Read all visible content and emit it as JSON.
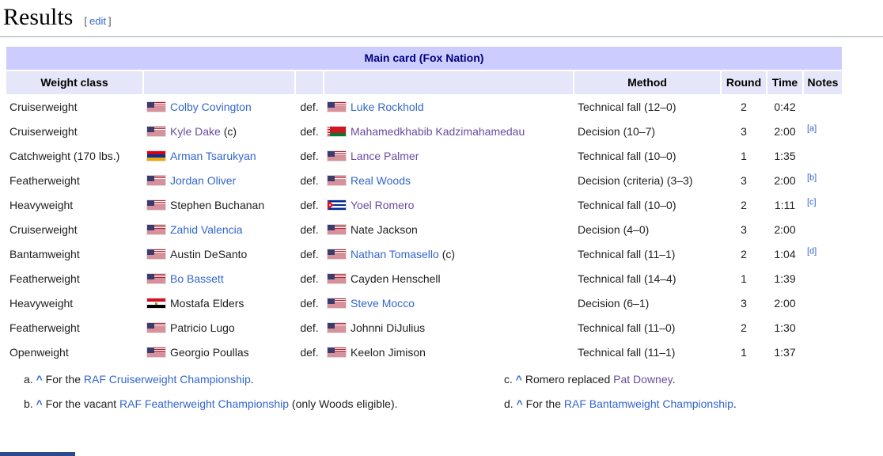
{
  "page": {
    "title": "Results",
    "edit_label": "edit",
    "edit_brackets": [
      "[",
      "]"
    ]
  },
  "table": {
    "caption": "Main card (Fox Nation)",
    "def_label": "def.",
    "columns": [
      "Weight class",
      "",
      "",
      "",
      "Method",
      "Round",
      "Time",
      "Notes"
    ],
    "rows": [
      {
        "weight_class": "Cruiserweight",
        "f1_flag": "us",
        "f1_name": "Colby Covington",
        "f1_suffix": "",
        "f1_style": "link",
        "f2_flag": "us",
        "f2_name": "Luke Rockhold",
        "f2_suffix": "",
        "f2_style": "link",
        "method": "Technical fall (12–0)",
        "round": "2",
        "time": "0:42",
        "note": ""
      },
      {
        "weight_class": "Cruiserweight",
        "f1_flag": "us",
        "f1_name": "Kyle Dake",
        "f1_suffix": " (c)",
        "f1_style": "visited",
        "f2_flag": "by",
        "f2_name": "Mahamedkhabib Kadzimahamedau",
        "f2_suffix": "",
        "f2_style": "visited",
        "method": "Decision (10–7)",
        "round": "3",
        "time": "2:00",
        "note": "a"
      },
      {
        "weight_class": "Catchweight (170 lbs.)",
        "f1_flag": "am",
        "f1_name": "Arman Tsarukyan",
        "f1_suffix": "",
        "f1_style": "link",
        "f2_flag": "us",
        "f2_name": "Lance Palmer",
        "f2_suffix": "",
        "f2_style": "visited",
        "method": "Technical fall (10–0)",
        "round": "1",
        "time": "1:35",
        "note": ""
      },
      {
        "weight_class": "Featherweight",
        "f1_flag": "us",
        "f1_name": "Jordan Oliver",
        "f1_suffix": "",
        "f1_style": "link",
        "f2_flag": "us",
        "f2_name": "Real Woods",
        "f2_suffix": "",
        "f2_style": "link",
        "method": "Decision (criteria) (3–3)",
        "round": "3",
        "time": "2:00",
        "note": "b"
      },
      {
        "weight_class": "Heavyweight",
        "f1_flag": "us",
        "f1_name": "Stephen Buchanan",
        "f1_suffix": "",
        "f1_style": "plain",
        "f2_flag": "cu",
        "f2_name": "Yoel Romero",
        "f2_suffix": "",
        "f2_style": "visited",
        "method": "Technical fall (10–0)",
        "round": "2",
        "time": "1:11",
        "note": "c"
      },
      {
        "weight_class": "Cruiserweight",
        "f1_flag": "us",
        "f1_name": "Zahid Valencia",
        "f1_suffix": "",
        "f1_style": "link",
        "f2_flag": "us",
        "f2_name": "Nate Jackson",
        "f2_suffix": "",
        "f2_style": "plain",
        "method": "Decision (4–0)",
        "round": "3",
        "time": "2:00",
        "note": ""
      },
      {
        "weight_class": "Bantamweight",
        "f1_flag": "us",
        "f1_name": "Austin DeSanto",
        "f1_suffix": "",
        "f1_style": "plain",
        "f2_flag": "us",
        "f2_name": "Nathan Tomasello",
        "f2_suffix": " (c)",
        "f2_style": "link",
        "method": "Technical fall (11–1)",
        "round": "2",
        "time": "1:04",
        "note": "d"
      },
      {
        "weight_class": "Featherweight",
        "f1_flag": "us",
        "f1_name": "Bo Bassett",
        "f1_suffix": "",
        "f1_style": "link",
        "f2_flag": "us",
        "f2_name": "Cayden Henschell",
        "f2_suffix": "",
        "f2_style": "plain",
        "method": "Technical fall (14–4)",
        "round": "1",
        "time": "1:39",
        "note": ""
      },
      {
        "weight_class": "Heavyweight",
        "f1_flag": "eg",
        "f1_name": "Mostafa Elders",
        "f1_suffix": "",
        "f1_style": "plain",
        "f2_flag": "us",
        "f2_name": "Steve Mocco",
        "f2_suffix": "",
        "f2_style": "link",
        "method": "Decision (6–1)",
        "round": "3",
        "time": "2:00",
        "note": ""
      },
      {
        "weight_class": "Featherweight",
        "f1_flag": "us",
        "f1_name": "Patricio Lugo",
        "f1_suffix": "",
        "f1_style": "plain",
        "f2_flag": "us",
        "f2_name": "Johnni DiJulius",
        "f2_suffix": "",
        "f2_style": "plain",
        "method": "Technical fall (11–0)",
        "round": "2",
        "time": "1:30",
        "note": ""
      },
      {
        "weight_class": "Openweight",
        "f1_flag": "us",
        "f1_name": "Georgio Poullas",
        "f1_suffix": "",
        "f1_style": "plain",
        "f2_flag": "us",
        "f2_name": "Keelon Jimison",
        "f2_suffix": "",
        "f2_style": "plain",
        "method": "Technical fall (11–1)",
        "round": "1",
        "time": "1:37",
        "note": ""
      }
    ]
  },
  "flags": {
    "us": "united-states",
    "by": "belarus",
    "am": "armenia",
    "cu": "cuba",
    "eg": "egypt"
  },
  "footnotes": {
    "left": [
      {
        "label": "a.",
        "caret": "^",
        "parts": [
          {
            "text": "For the "
          },
          {
            "text": "RAF Cruiserweight Championship",
            "style": "link"
          },
          {
            "text": "."
          }
        ]
      },
      {
        "label": "b.",
        "caret": "^",
        "parts": [
          {
            "text": "For the vacant "
          },
          {
            "text": "RAF Featherweight Championship",
            "style": "link"
          },
          {
            "text": " (only Woods eligible)."
          }
        ]
      }
    ],
    "right": [
      {
        "label": "c.",
        "caret": "^",
        "parts": [
          {
            "text": "Romero replaced "
          },
          {
            "text": "Pat Downey",
            "style": "visited"
          },
          {
            "text": "."
          }
        ]
      },
      {
        "label": "d.",
        "caret": "^",
        "parts": [
          {
            "text": "For the "
          },
          {
            "text": "RAF Bantamweight Championship",
            "style": "link"
          },
          {
            "text": "."
          }
        ]
      }
    ]
  },
  "colors": {
    "caption_bg": "#ccccff",
    "header_bg": "#e6e6fa",
    "caption_text": "#000080",
    "link": "#3366cc",
    "visited_link": "#6b4ba1",
    "heading_rule": "#a2a9b1",
    "navbox_edge": "#2a4b8d"
  }
}
